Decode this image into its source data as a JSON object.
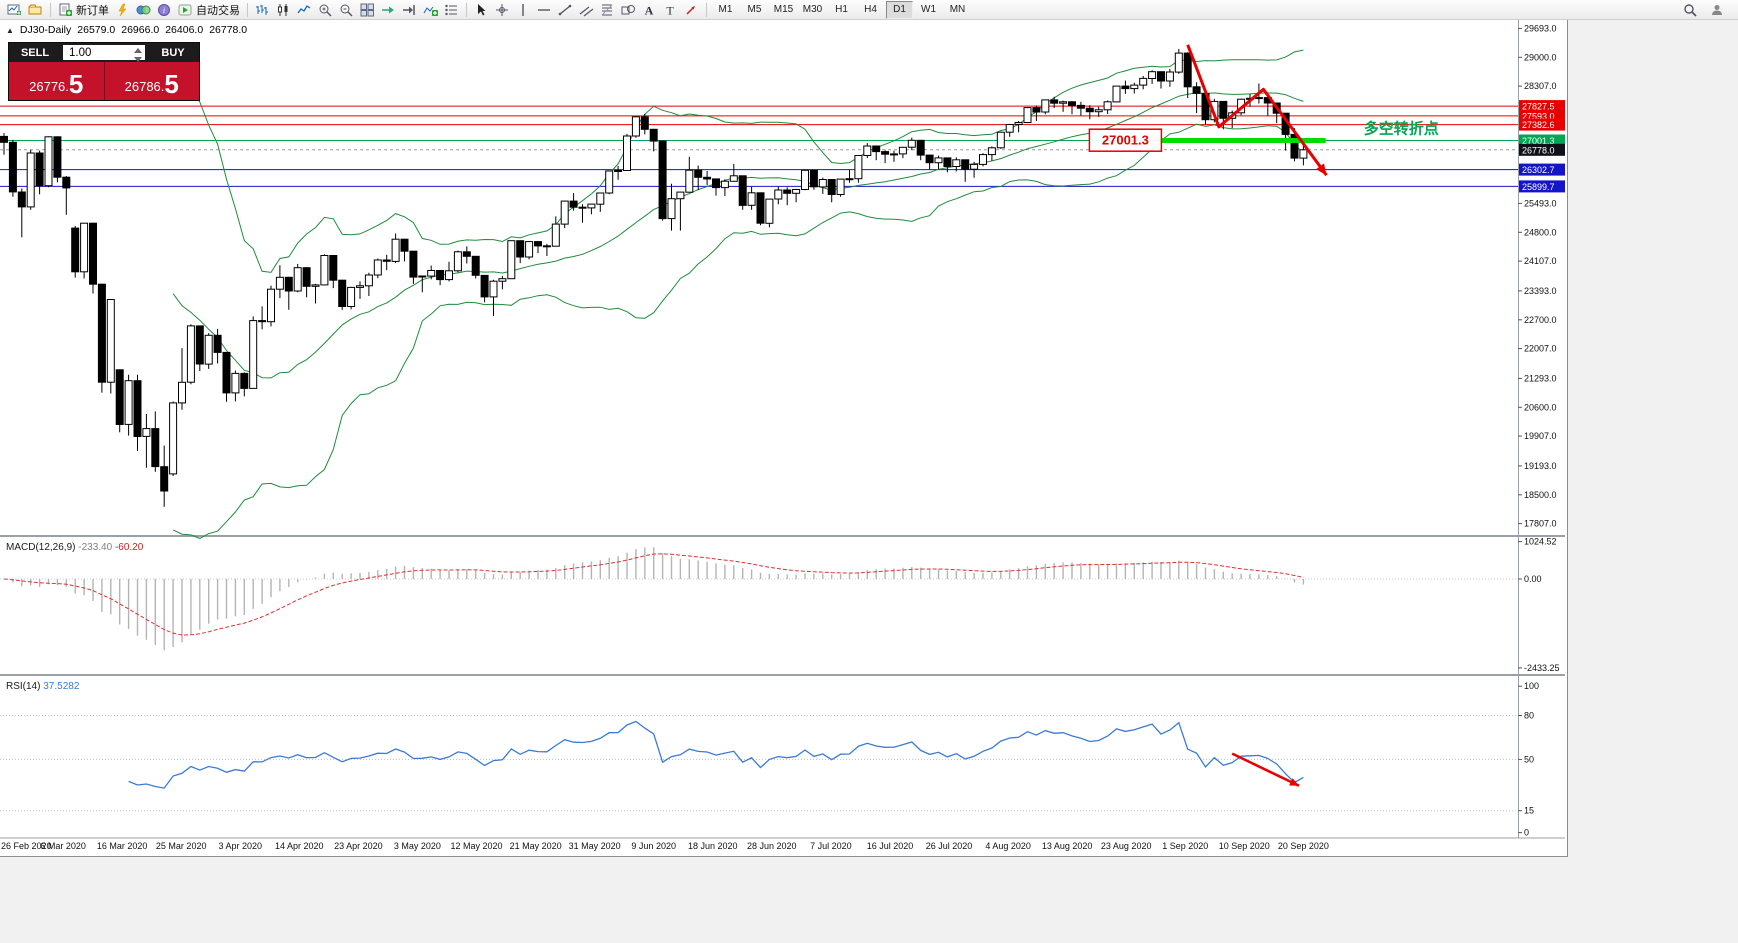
{
  "toolbar": {
    "groups": [
      {
        "name": "standard",
        "items": [
          {
            "name": "new-chart-icon"
          },
          {
            "name": "profiles-icon"
          }
        ]
      },
      {
        "name": "trade",
        "items": [
          {
            "name": "new-order-button",
            "label": "新订单"
          },
          {
            "name": "metaeditor-icon"
          },
          {
            "name": "charts-icon"
          },
          {
            "name": "data-window-icon"
          },
          {
            "name": "autotrading-button",
            "label": "自动交易"
          }
        ]
      },
      {
        "name": "chart-tools",
        "items": [
          {
            "name": "bar-chart-icon"
          },
          {
            "name": "candlestick-chart-icon"
          },
          {
            "name": "line-chart-icon"
          },
          {
            "name": "zoom-in-icon"
          },
          {
            "name": "zoom-out-icon"
          },
          {
            "name": "tile-windows-icon"
          },
          {
            "name": "auto-scroll-icon"
          },
          {
            "name": "chart-shift-icon"
          },
          {
            "name": "indicators-icon"
          },
          {
            "name": "objects-list-icon"
          }
        ]
      },
      {
        "name": "drawing-tools",
        "items": [
          {
            "name": "cursor-icon"
          },
          {
            "name": "crosshair-icon"
          },
          {
            "name": "vertical-line-icon"
          },
          {
            "name": "horizontal-line-icon"
          },
          {
            "name": "trendline-icon"
          },
          {
            "name": "equidistant-channel-icon"
          },
          {
            "name": "fibonacci-icon"
          },
          {
            "name": "shapes-icon"
          },
          {
            "name": "text-icon"
          },
          {
            "name": "text-label-icon"
          },
          {
            "name": "arrows-icon"
          }
        ]
      }
    ],
    "timeframes": [
      {
        "label": "M1"
      },
      {
        "label": "M5"
      },
      {
        "label": "M15"
      },
      {
        "label": "M30"
      },
      {
        "label": "H1"
      },
      {
        "label": "H4"
      },
      {
        "label": "D1",
        "active": true
      },
      {
        "label": "W1"
      },
      {
        "label": "MN"
      }
    ],
    "right_items": [
      {
        "name": "search-icon"
      },
      {
        "name": "community-icon"
      }
    ]
  },
  "trade_panel": {
    "sell_label": "SELL",
    "buy_label": "BUY",
    "volume": "1.00",
    "sell_price": "26776.5",
    "buy_price": "26786.5"
  },
  "chart_header": {
    "symbol_period": "DJ30-Daily",
    "open": "26579.0",
    "high": "26966.0",
    "low": "26406.0",
    "close": "26778.0"
  },
  "chart_data": {
    "type": "candlestick",
    "title": "DJ30 Daily",
    "ylim": [
      17534,
      29870
    ],
    "y_ticks": [
      29693.0,
      29000.0,
      28307.0,
      25493.0,
      24800.0,
      24107.0,
      23393.0,
      22700.0,
      22007.0,
      21293.0,
      20600.0,
      19907.0,
      19193.0,
      18500.0,
      17807.0
    ],
    "x_tick_labels": [
      "26 Feb 2020",
      "6 Mar 2020",
      "16 Mar 2020",
      "25 Mar 2020",
      "3 Apr 2020",
      "14 Apr 2020",
      "23 Apr 2020",
      "3 May 2020",
      "12 May 2020",
      "21 May 2020",
      "31 May 2020",
      "9 Jun 2020",
      "18 Jun 2020",
      "28 Jun 2020",
      "7 Jul 2020",
      "16 Jul 2020",
      "26 Jul 2020",
      "4 Aug 2020",
      "13 Aug 2020",
      "23 Aug 2020",
      "1 Sep 2020",
      "10 Sep 2020",
      "20 Sep 2020"
    ],
    "candles": [
      [
        27100,
        27180,
        26660,
        26958
      ],
      [
        26958,
        27020,
        25650,
        25767
      ],
      [
        25767,
        25850,
        24680,
        25409
      ],
      [
        25409,
        26780,
        25340,
        26703
      ],
      [
        26703,
        26760,
        25710,
        25917
      ],
      [
        25917,
        27100,
        25880,
        27090
      ],
      [
        27090,
        27100,
        26000,
        26121
      ],
      [
        26121,
        26150,
        25220,
        25865
      ],
      [
        24900,
        24950,
        23710,
        23851
      ],
      [
        23851,
        25020,
        23690,
        25018
      ],
      [
        25018,
        25030,
        23330,
        23553
      ],
      [
        23553,
        23560,
        20950,
        21201
      ],
      [
        21201,
        23190,
        20930,
        23186
      ],
      [
        21500,
        21510,
        20000,
        20188
      ],
      [
        20188,
        21380,
        19920,
        21237
      ],
      [
        21237,
        21380,
        19550,
        19899
      ],
      [
        19899,
        20440,
        19150,
        20087
      ],
      [
        20087,
        20500,
        19050,
        19174
      ],
      [
        19174,
        19680,
        18210,
        18592
      ],
      [
        19000,
        20740,
        18950,
        20705
      ],
      [
        20705,
        22020,
        20540,
        21200
      ],
      [
        21200,
        22590,
        21150,
        22552
      ],
      [
        22552,
        22560,
        21470,
        21637
      ],
      [
        21637,
        22380,
        21520,
        22327
      ],
      [
        22327,
        22480,
        21650,
        21917
      ],
      [
        21917,
        21920,
        20730,
        20944
      ],
      [
        20944,
        21480,
        20740,
        21413
      ],
      [
        21413,
        21440,
        20860,
        21053
      ],
      [
        21053,
        22780,
        21050,
        22680
      ],
      [
        22680,
        23020,
        22470,
        22654
      ],
      [
        22654,
        23520,
        22540,
        23434
      ],
      [
        23434,
        24010,
        23220,
        23719
      ],
      [
        23719,
        23730,
        22940,
        23391
      ],
      [
        23391,
        24040,
        23360,
        23950
      ],
      [
        23950,
        23960,
        23240,
        23504
      ],
      [
        23504,
        23560,
        23090,
        23537
      ],
      [
        23537,
        24270,
        23530,
        24242
      ],
      [
        24242,
        24250,
        23460,
        23650
      ],
      [
        23650,
        23660,
        22940,
        23018
      ],
      [
        23018,
        23490,
        22950,
        23476
      ],
      [
        23476,
        23620,
        23200,
        23515
      ],
      [
        23515,
        23830,
        23270,
        23775
      ],
      [
        23775,
        24170,
        23700,
        24134
      ],
      [
        24134,
        24260,
        23890,
        24102
      ],
      [
        24102,
        24770,
        24060,
        24634
      ],
      [
        24634,
        24640,
        24100,
        24346
      ],
      [
        24346,
        24350,
        23560,
        23724
      ],
      [
        23724,
        23760,
        23360,
        23749
      ],
      [
        23749,
        24000,
        23670,
        23883
      ],
      [
        23883,
        23890,
        23530,
        23665
      ],
      [
        23665,
        24090,
        23620,
        23876
      ],
      [
        23876,
        24360,
        23840,
        24331
      ],
      [
        24331,
        24460,
        24050,
        24222
      ],
      [
        24222,
        24230,
        23690,
        23765
      ],
      [
        23765,
        23770,
        23120,
        23248
      ],
      [
        23248,
        23660,
        22790,
        23625
      ],
      [
        23625,
        23750,
        23430,
        23685
      ],
      [
        23685,
        24600,
        23680,
        24597
      ],
      [
        24597,
        24600,
        24060,
        24206
      ],
      [
        24206,
        24580,
        24150,
        24576
      ],
      [
        24576,
        24580,
        24300,
        24474
      ],
      [
        24474,
        24520,
        24230,
        24465
      ],
      [
        24465,
        25180,
        24460,
        24995
      ],
      [
        24995,
        25560,
        24900,
        25548
      ],
      [
        25548,
        25740,
        25320,
        25401
      ],
      [
        25401,
        25470,
        25030,
        25383
      ],
      [
        25383,
        25480,
        25230,
        25475
      ],
      [
        25475,
        25750,
        25290,
        25743
      ],
      [
        25743,
        26280,
        25710,
        26270
      ],
      [
        26270,
        26390,
        26060,
        26282
      ],
      [
        26282,
        27160,
        26280,
        27111
      ],
      [
        27111,
        27580,
        27070,
        27572
      ],
      [
        27572,
        27640,
        27150,
        27272
      ],
      [
        27272,
        27280,
        26740,
        26990
      ],
      [
        26990,
        27000,
        25080,
        25128
      ],
      [
        25128,
        25965,
        24840,
        25605
      ],
      [
        25605,
        25760,
        24840,
        25763
      ],
      [
        25763,
        26610,
        25760,
        26290
      ],
      [
        26290,
        26400,
        25810,
        26120
      ],
      [
        26120,
        26270,
        25930,
        26080
      ],
      [
        26080,
        26090,
        25680,
        25871
      ],
      [
        25871,
        26070,
        25670,
        26025
      ],
      [
        26025,
        26440,
        26020,
        26156
      ],
      [
        26156,
        26160,
        25340,
        25446
      ],
      [
        25446,
        25890,
        25340,
        25746
      ],
      [
        25746,
        25750,
        24970,
        25016
      ],
      [
        25016,
        25600,
        24920,
        25596
      ],
      [
        25596,
        25890,
        25470,
        25813
      ],
      [
        25813,
        25880,
        25450,
        25735
      ],
      [
        25735,
        25840,
        25520,
        25827
      ],
      [
        25827,
        26290,
        25810,
        26287
      ],
      [
        26287,
        26290,
        25820,
        25890
      ],
      [
        25890,
        26110,
        25720,
        26067
      ],
      [
        26067,
        26070,
        25520,
        25706
      ],
      [
        25706,
        26080,
        25650,
        26075
      ],
      [
        26075,
        26300,
        25990,
        26086
      ],
      [
        26086,
        26650,
        25990,
        26643
      ],
      [
        26643,
        26940,
        26580,
        26870
      ],
      [
        26870,
        26880,
        26530,
        26735
      ],
      [
        26735,
        26770,
        26460,
        26672
      ],
      [
        26672,
        26760,
        26490,
        26681
      ],
      [
        26681,
        26850,
        26580,
        26840
      ],
      [
        26840,
        27070,
        26770,
        27006
      ],
      [
        27006,
        27010,
        26530,
        26652
      ],
      [
        26652,
        26660,
        26310,
        26470
      ],
      [
        26470,
        26640,
        26310,
        26585
      ],
      [
        26585,
        26590,
        26240,
        26379
      ],
      [
        26379,
        26600,
        26260,
        26539
      ],
      [
        26539,
        26540,
        26010,
        26313
      ],
      [
        26313,
        26490,
        26110,
        26428
      ],
      [
        26428,
        26700,
        26380,
        26664
      ],
      [
        26664,
        26860,
        26520,
        26828
      ],
      [
        26828,
        27210,
        26800,
        27202
      ],
      [
        27202,
        27400,
        27090,
        27387
      ],
      [
        27387,
        27470,
        27200,
        27433
      ],
      [
        27433,
        27800,
        27420,
        27791
      ],
      [
        27791,
        27840,
        27470,
        27686
      ],
      [
        27686,
        27980,
        27630,
        27977
      ],
      [
        27977,
        28050,
        27780,
        27897
      ],
      [
        27897,
        27960,
        27690,
        27931
      ],
      [
        27931,
        27950,
        27630,
        27845
      ],
      [
        27845,
        27930,
        27600,
        27778
      ],
      [
        27778,
        27850,
        27510,
        27693
      ],
      [
        27693,
        27810,
        27570,
        27739
      ],
      [
        27739,
        27960,
        27640,
        27930
      ],
      [
        27930,
        28310,
        27920,
        28308
      ],
      [
        28308,
        28440,
        28120,
        28248
      ],
      [
        28248,
        28390,
        28130,
        28332
      ],
      [
        28332,
        28550,
        28230,
        28492
      ],
      [
        28492,
        28690,
        28360,
        28654
      ],
      [
        28654,
        28660,
        28250,
        28430
      ],
      [
        28430,
        28720,
        28290,
        28645
      ],
      [
        28645,
        29199,
        28600,
        29100
      ],
      [
        29100,
        29120,
        28020,
        28292
      ],
      [
        28292,
        28400,
        27660,
        28133
      ],
      [
        28133,
        28140,
        27380,
        27501
      ],
      [
        27501,
        28000,
        27440,
        27940
      ],
      [
        27940,
        27950,
        27270,
        27535
      ],
      [
        27535,
        27720,
        27300,
        27666
      ],
      [
        27666,
        28010,
        27610,
        27993
      ],
      [
        27993,
        28120,
        27810,
        28014
      ],
      [
        28014,
        28370,
        27890,
        28032
      ],
      [
        28032,
        28040,
        27600,
        27902
      ],
      [
        27902,
        27910,
        27420,
        27657
      ],
      [
        27657,
        27660,
        26760,
        27148
      ],
      [
        27148,
        27300,
        26500,
        26579
      ],
      [
        26579,
        26966,
        26406,
        26778
      ]
    ],
    "levels": [
      {
        "price": 27827.5,
        "label": "27827.5",
        "line_color": "#e80000",
        "badge_color": "#e80000"
      },
      {
        "price": 27593.0,
        "label": "27593.0",
        "line_color": "#e80000",
        "badge_color": "#e80000"
      },
      {
        "price": 27382.6,
        "label": "27382.6",
        "line_color": "#e80000",
        "badge_color": "#e80000"
      },
      {
        "price": 27001.3,
        "label": "27001.3",
        "line_color": "#00a651",
        "badge_color": "#00a651"
      },
      {
        "price": 26302.7,
        "label": "26302.7",
        "line_color": "#1414c8",
        "badge_color": "#1414c8"
      },
      {
        "price": 25899.7,
        "label": "25899.7",
        "line_color": "#1414c8",
        "badge_color": "#1414c8"
      }
    ],
    "bid": {
      "price": 26778.0,
      "label": "26778.0",
      "badge_color": "#101018"
    },
    "bollinger": {
      "period": 20,
      "deviation": 2,
      "color": "#1f8c3b"
    },
    "macd": {
      "label": "MACD(12,26,9)",
      "main_value": "-233.40",
      "signal_value": "-60.20",
      "ylim": [
        -2600,
        1150
      ],
      "y_ticks": [
        {
          "label": "1024.52",
          "value": 1024.52
        },
        {
          "label": "0.00",
          "value": 0
        },
        {
          "label": "-2433.25",
          "value": -2433.25
        }
      ],
      "histogram_color": "#b4b4b4",
      "signal_color": "#e03030"
    },
    "rsi": {
      "label": "RSI(14)",
      "value": "37.5282",
      "period": 14,
      "ylim": [
        -3,
        107
      ],
      "levels": [
        80,
        50,
        15
      ],
      "y_ticks": [
        {
          "label": "100",
          "value": 100
        },
        {
          "label": "80",
          "value": 80
        },
        {
          "label": "50",
          "value": 50
        },
        {
          "label": "15",
          "value": 15
        },
        {
          "label": "0",
          "value": 0
        }
      ],
      "line_color": "#3a7bd5"
    },
    "annotations": {
      "zigzag": {
        "color": "#e80000",
        "width": 3,
        "points": [
          [
            133,
            29300
          ],
          [
            136.5,
            27330
          ],
          [
            141.5,
            28230
          ],
          [
            148.6,
            26170
          ]
        ]
      },
      "support_segment": {
        "price": 27001.3,
        "from_index": 130,
        "to_index": 148.5,
        "color": "#00dd00",
        "width": 5
      },
      "price_callout": {
        "text": "27001.3",
        "index": 126,
        "price": 27010,
        "color": "#e80000"
      },
      "label_text": {
        "text": "多空转折点",
        "index": 157,
        "price": 27290,
        "color": "#00a651"
      },
      "rsi_arrow": {
        "color": "#e80000",
        "width": 2.5,
        "points": [
          [
            138,
            54
          ],
          [
            145.5,
            32
          ]
        ]
      }
    }
  }
}
